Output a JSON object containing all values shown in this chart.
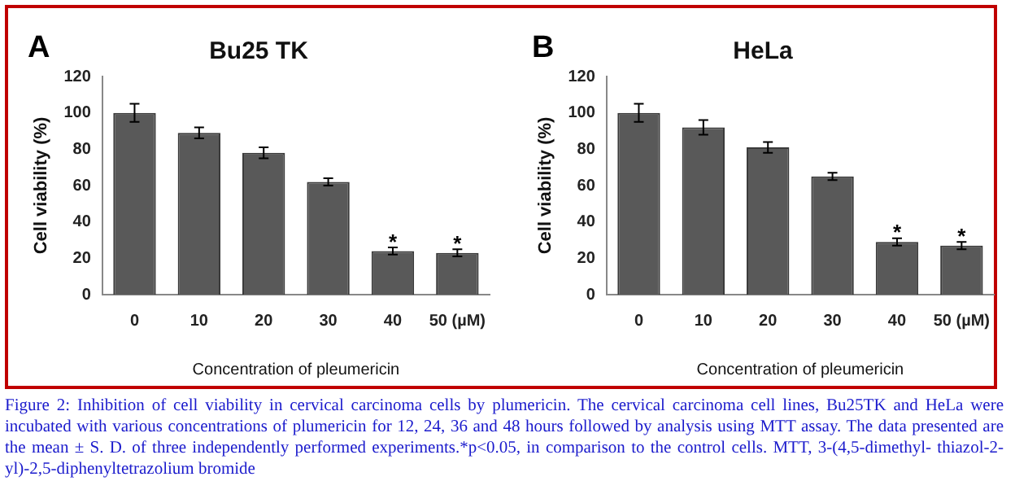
{
  "chart_data": [
    {
      "type": "bar",
      "title": "Bu25 TK",
      "xlabel": "Concentration of pleumericin",
      "ylabel": "Cell viability (%)",
      "categories": [
        "0",
        "10",
        "20",
        "30",
        "40",
        "50 (µM)"
      ],
      "values": [
        100,
        89,
        78,
        62,
        24,
        23
      ],
      "errors": [
        5,
        3,
        3,
        2,
        2,
        2
      ],
      "color": "#595959",
      "ylim": [
        0,
        120
      ],
      "yticks": [
        0,
        20,
        40,
        60,
        80,
        100,
        120
      ],
      "grid": false,
      "legend": false,
      "annotations": [
        "A",
        "Figure 2: Inhibition of cell viability in cervical carcinoma cells by plumericin. The cervical carcinoma cell lines, Bu25TK and HeLa were incubated with various concentrations of plumericin for 12, 24, 36 and 48 hours followed by analysis using MTT assay. The data presented are the mean ± S. D. of three independently performed experiments.*p<0.05, in comparison to the control cells. MTT, 3-(4,5-dimethyl- thiazol-2-yl)-2,5-diphenyltetrazolium bromide",
        {
          "text": "*",
          "x": "40",
          "y": 28
        },
        {
          "text": "*",
          "x": "50 (µM)",
          "y": 27
        }
      ]
    },
    {
      "type": "bar",
      "title": "HeLa",
      "xlabel": "Concentration of pleumericin",
      "ylabel": "Cell viability (%)",
      "categories": [
        "0",
        "10",
        "20",
        "30",
        "40",
        "50 (µM)"
      ],
      "values": [
        100,
        92,
        81,
        65,
        29,
        27
      ],
      "errors": [
        5,
        4,
        3,
        2,
        2,
        2
      ],
      "color": "#595959",
      "ylim": [
        0,
        120
      ],
      "yticks": [
        0,
        20,
        40,
        60,
        80,
        100,
        120
      ],
      "grid": false,
      "legend": false,
      "annotations": [
        "B",
        {
          "text": "*",
          "x": "40",
          "y": 33
        },
        {
          "text": "*",
          "x": "50 (µM)",
          "y": 31
        }
      ]
    }
  ]
}
